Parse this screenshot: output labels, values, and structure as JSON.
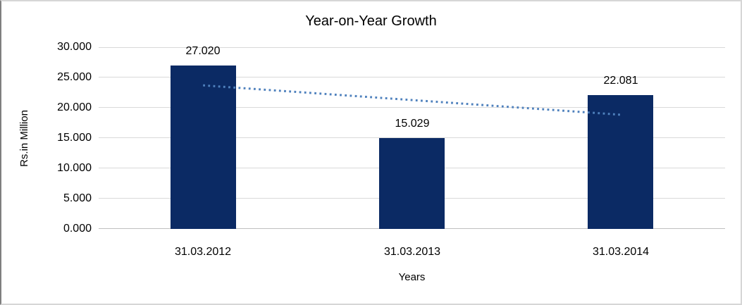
{
  "chart_data": {
    "type": "bar",
    "title": "Year-on-Year Growth",
    "xlabel": "Years",
    "ylabel": "Rs.in Million",
    "categories": [
      "31.03.2012",
      "31.03.2013",
      "31.03.2014"
    ],
    "values": [
      27020,
      15029,
      22081
    ],
    "value_labels": [
      "27.020",
      "15.029",
      "22.081"
    ],
    "ylim": [
      0,
      30000
    ],
    "y_ticks": [
      {
        "value": 0,
        "label": "0.000"
      },
      {
        "value": 5000,
        "label": "5.000"
      },
      {
        "value": 10000,
        "label": "10.000"
      },
      {
        "value": 15000,
        "label": "15.000"
      },
      {
        "value": 20000,
        "label": "20.000"
      },
      {
        "value": 25000,
        "label": "25.000"
      },
      {
        "value": 30000,
        "label": "30.000"
      }
    ],
    "grid": "horizontal",
    "legend": "none",
    "bar_color": "#0B2A64",
    "gridline_color": "#D9D9D9",
    "baseline_color": "#BFBFBF",
    "trendline": {
      "type": "linear",
      "style": "dotted",
      "color": "#4F81BD",
      "start_value": 23700,
      "end_value": 18850
    }
  }
}
